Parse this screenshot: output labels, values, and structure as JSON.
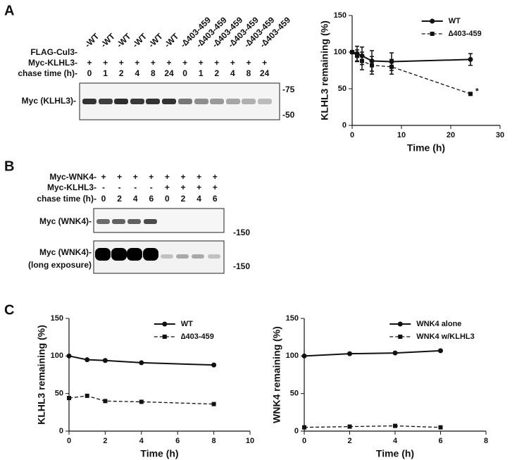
{
  "panel_labels": [
    "A",
    "B",
    "C"
  ],
  "panel_a_blot": {
    "row_labels": [
      "FLAG-Cul3-",
      "Myc-KLHL3-",
      "chase time (h)-"
    ],
    "lanes": [
      "-WT",
      "-WT",
      "-WT",
      "-WT",
      "-WT",
      "-WT",
      "-∆403-459",
      "-∆403-459",
      "-∆403-459",
      "-∆403-459",
      "-∆403-459",
      "-∆403-459"
    ],
    "myc_klhl3": [
      "+",
      "+",
      "+",
      "+",
      "+",
      "+",
      "+",
      "+",
      "+",
      "+",
      "+",
      "+"
    ],
    "chase_times": [
      0,
      1,
      2,
      4,
      8,
      24,
      0,
      1,
      2,
      4,
      8,
      24
    ],
    "blot_label": "Myc (KLHL3)-",
    "markers": [
      "-75",
      "-50"
    ]
  },
  "panel_b_blot": {
    "row_labels": [
      "Myc-WNK4-",
      "Myc-KLHL3-",
      "chase time (h)-"
    ],
    "myc_wnk4": [
      "+",
      "+",
      "+",
      "+",
      "+",
      "+",
      "+",
      "+"
    ],
    "myc_klhl3": [
      "-",
      "-",
      "-",
      "-",
      "+",
      "+",
      "+",
      "+"
    ],
    "chase_times": [
      0,
      2,
      4,
      6,
      0,
      2,
      4,
      6
    ],
    "blots": [
      {
        "label": [
          "Myc (WNK4)-"
        ],
        "marker": "-150"
      },
      {
        "label": [
          "Myc (WNK4)-",
          "(long exposure)"
        ],
        "marker": "-150"
      }
    ]
  },
  "chart_data": [
    {
      "type": "line",
      "xlabel": "Time (h)",
      "ylabel": "KLHL3 remaining (%)",
      "x": [
        0,
        1,
        2,
        4,
        8,
        24
      ],
      "xlim": [
        0,
        30
      ],
      "xticks": [
        0,
        10,
        20,
        30
      ],
      "ylim": [
        0,
        150
      ],
      "yticks": [
        0,
        50,
        100,
        150
      ],
      "legend": "upper right",
      "series": [
        {
          "name": "WT",
          "color": "#111111",
          "marker": "circle",
          "dashed": false,
          "values": [
            100,
            98,
            95,
            88,
            87,
            90
          ],
          "errors": [
            0,
            10,
            12,
            14,
            12,
            8
          ]
        },
        {
          "name": "∆403-459",
          "color": "#111111",
          "marker": "square",
          "dashed": true,
          "values": [
            100,
            95,
            88,
            82,
            80,
            43
          ],
          "errors": [
            0,
            8,
            12,
            12,
            10,
            2
          ],
          "annotation": "*"
        }
      ]
    },
    {
      "type": "line",
      "xlabel": "Time (h)",
      "ylabel": "KLHL3 remaining (%)",
      "x": [
        0,
        1,
        2,
        4,
        8
      ],
      "xlim": [
        0,
        10
      ],
      "xticks": [
        0,
        2,
        4,
        6,
        8,
        10
      ],
      "ylim": [
        0,
        150
      ],
      "yticks": [
        0,
        50,
        100,
        150
      ],
      "legend": "upper right",
      "series": [
        {
          "name": "WT",
          "color": "#111111",
          "marker": "circle",
          "dashed": false,
          "values": [
            100,
            95,
            94,
            91,
            88
          ]
        },
        {
          "name": "∆403-459",
          "color": "#111111",
          "marker": "square",
          "dashed": true,
          "values": [
            44,
            47,
            40,
            39,
            36
          ]
        }
      ]
    },
    {
      "type": "line",
      "xlabel": "Time (h)",
      "ylabel": "WNK4 remaining (%)",
      "x": [
        0,
        2,
        4,
        6
      ],
      "xlim": [
        0,
        8
      ],
      "xticks": [
        0,
        2,
        4,
        6,
        8
      ],
      "ylim": [
        0,
        150
      ],
      "yticks": [
        0,
        50,
        100,
        150
      ],
      "legend": "upper right",
      "series": [
        {
          "name": "WNK4 alone",
          "color": "#111111",
          "marker": "circle",
          "dashed": false,
          "values": [
            100,
            103,
            104,
            107
          ]
        },
        {
          "name": "WNK4 w/KLHL3",
          "color": "#111111",
          "marker": "square",
          "dashed": true,
          "values": [
            5,
            6,
            7,
            5
          ]
        }
      ]
    }
  ]
}
